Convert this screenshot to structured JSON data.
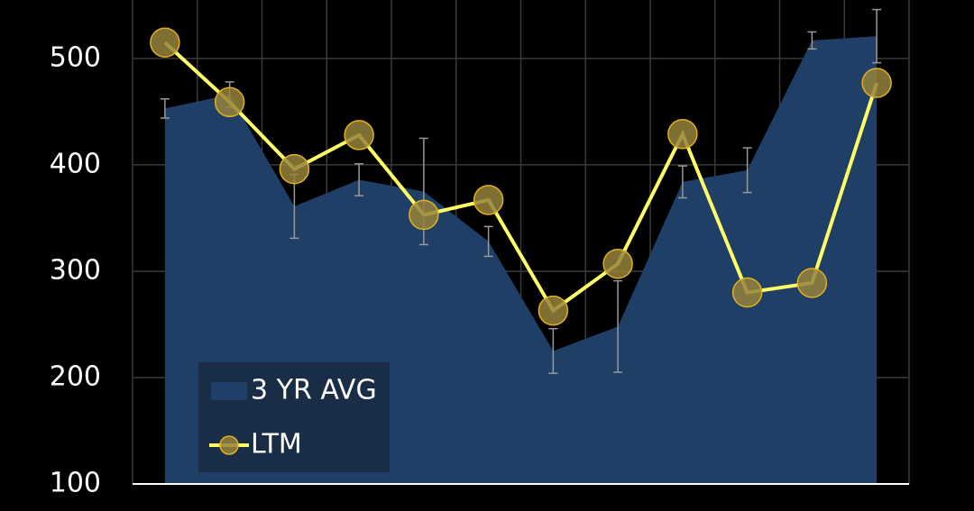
{
  "chart_data": {
    "type": "combo",
    "categories": [
      null,
      null,
      null,
      null,
      null,
      null,
      null,
      null,
      null,
      null,
      null,
      null
    ],
    "series": [
      {
        "name": "3 YR AVG",
        "type": "area",
        "color": "#1f3f66",
        "values": [
          453,
          466,
          361,
          386,
          375,
          328,
          225,
          248,
          384,
          395,
          517,
          521
        ],
        "errors": [
          9,
          12,
          30,
          15,
          50,
          14,
          21,
          43,
          15,
          21,
          8,
          25
        ]
      },
      {
        "name": "LTM",
        "type": "line",
        "color": "#ffff66",
        "values": [
          515,
          459,
          396,
          428,
          353,
          367,
          263,
          307,
          429,
          280,
          289,
          477
        ]
      }
    ],
    "ylim": [
      100,
      555
    ],
    "yticks": [
      100,
      200,
      300,
      400,
      500
    ],
    "grid": true,
    "legend": "lower-left"
  }
}
